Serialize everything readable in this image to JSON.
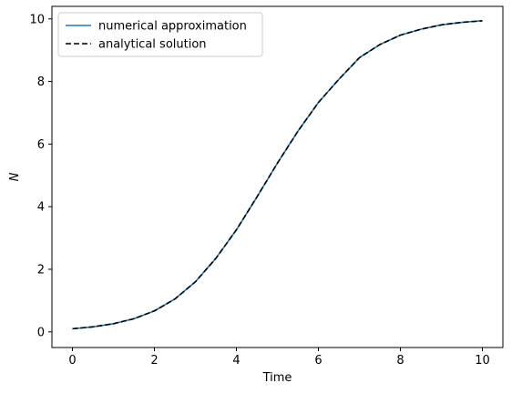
{
  "chart_data": {
    "type": "line",
    "title": "",
    "xlabel": "Time",
    "ylabel": "N",
    "xlim": [
      -0.5,
      10.5
    ],
    "ylim": [
      -0.5,
      10.4
    ],
    "xticks": [
      0,
      2,
      4,
      6,
      8,
      10
    ],
    "yticks": [
      0,
      2,
      4,
      6,
      8,
      10
    ],
    "grid": false,
    "legend_position": "upper-left",
    "series": [
      {
        "name": "numerical approximation",
        "color": "#1f77b4",
        "style": "solid",
        "x": [
          0,
          0.5,
          1,
          1.5,
          2,
          2.5,
          3,
          3.5,
          4,
          4.5,
          5,
          5.5,
          6,
          6.5,
          7,
          7.5,
          8,
          8.5,
          9,
          9.5,
          10
        ],
        "y": [
          0.1,
          0.16,
          0.26,
          0.42,
          0.67,
          1.05,
          1.6,
          2.35,
          3.26,
          4.31,
          5.39,
          6.41,
          7.33,
          8.07,
          8.76,
          9.18,
          9.48,
          9.67,
          9.81,
          9.89,
          9.94
        ]
      },
      {
        "name": "analytical solution",
        "color": "#000000",
        "style": "dashed",
        "x": [
          0,
          0.5,
          1,
          1.5,
          2,
          2.5,
          3,
          3.5,
          4,
          4.5,
          5,
          5.5,
          6,
          6.5,
          7,
          7.5,
          8,
          8.5,
          9,
          9.5,
          10
        ],
        "y": [
          0.1,
          0.16,
          0.26,
          0.42,
          0.67,
          1.05,
          1.6,
          2.35,
          3.26,
          4.31,
          5.39,
          6.41,
          7.33,
          8.07,
          8.76,
          9.18,
          9.48,
          9.67,
          9.81,
          9.89,
          9.94
        ]
      }
    ]
  }
}
